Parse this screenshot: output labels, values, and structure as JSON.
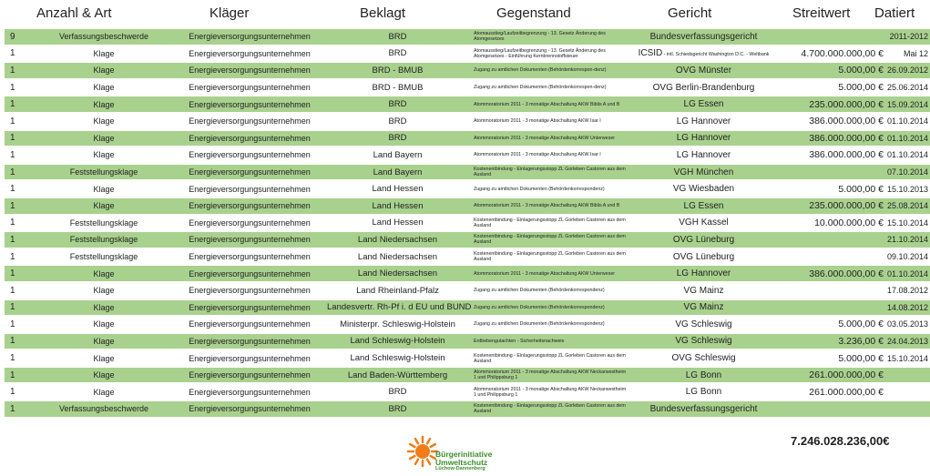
{
  "headers": [
    "Anzahl & Art",
    "Kläger",
    "Beklagt",
    "Gegenstand",
    "Gericht",
    "Streitwert",
    "Datiert"
  ],
  "rows": [
    {
      "n": "9",
      "art": "Verfassungsbeschwerde",
      "klaeger": "Energieversorgungsunternehmen",
      "beklagt": "BRD",
      "gegenstand": "Atomausstieg/Laufzeitbegrenzung - 13. Gesetz Änderung des Atomgesetzes",
      "gericht": "Bundesverfassungsgericht",
      "gericht_note": "",
      "streitwert": "",
      "datiert": "2011-2012",
      "green": true
    },
    {
      "n": "1",
      "art": "Klage",
      "klaeger": "Energieversorgungsunternehmen",
      "beklagt": "BRD",
      "gegenstand": "Atomausstieg/Laufzeitbegrenzung - 13. Gesetz Änderung des Atomgesetzes - Einführung Kernbrennstoffsteuer",
      "gericht": "ICSID",
      "gericht_note": " - intl. Schiedsgericht Washington D.C. - Weltbank",
      "streitwert": "4.700.000.000,00 €",
      "datiert": "Mai 12",
      "green": false
    },
    {
      "n": "1",
      "art": "Klage",
      "klaeger": "Energieversorgungsunternehmen",
      "beklagt": "BRD - BMUB",
      "gegenstand": "Zugang zu amtlichen Dokumenten (Behördenkorrespon-denz)",
      "gericht": "OVG Münster",
      "gericht_note": "",
      "streitwert": "5.000,00 €",
      "datiert": "26.09.2012",
      "green": true
    },
    {
      "n": "1",
      "art": "Klage",
      "klaeger": "Energieversorgungsunternehmen",
      "beklagt": "BRD - BMUB",
      "gegenstand": "Zugang zu amtlichen Dokumenten (Behördenkorrespon-denz)",
      "gericht": "OVG Berlin-Brandenburg",
      "gericht_note": "",
      "streitwert": "5.000,00 €",
      "datiert": "25.06.2014",
      "green": false
    },
    {
      "n": "1",
      "art": "Klage",
      "klaeger": "Energieversorgungsunternehmen",
      "beklagt": "BRD",
      "gegenstand": "Atommoratorium 2011 - 3 monatige Abschaltung AKW Biblis A und B",
      "gericht": "LG Essen",
      "gericht_note": "",
      "streitwert": "235.000.000,00 €",
      "datiert": "15.09.2014",
      "green": true
    },
    {
      "n": "1",
      "art": "Klage",
      "klaeger": "Energieversorgungsunternehmen",
      "beklagt": "BRD",
      "gegenstand": "Atommoratorium 2011 - 3 monatige Abschaltung AKW Isar I",
      "gericht": "LG Hannover",
      "gericht_note": "",
      "streitwert": "386.000.000,00 €",
      "datiert": "01.10.2014",
      "green": false
    },
    {
      "n": "1",
      "art": "Klage",
      "klaeger": "Energieversorgungsunternehmen",
      "beklagt": "BRD",
      "gegenstand": "Atommoratorium 2011 - 3 monatige Abschaltung AKW Unterweser",
      "gericht": "LG Hannover",
      "gericht_note": "",
      "streitwert": "386.000.000,00 €",
      "datiert": "01.10.2014",
      "green": true
    },
    {
      "n": "1",
      "art": "Klage",
      "klaeger": "Energieversorgungsunternehmen",
      "beklagt": "Land Bayern",
      "gegenstand": "Atommoratorium 2011 - 3 monatige Abschaltung AKW Isar I",
      "gericht": "LG Hannover",
      "gericht_note": "",
      "streitwert": "386.000.000,00 €",
      "datiert": "01.10.2014",
      "green": false
    },
    {
      "n": "1",
      "art": "Feststellungsklage",
      "klaeger": "Energieversorgungsunternehmen",
      "beklagt": "Land Bayern",
      "gegenstand": "Kostenentbindung - Einlagerungsstopp ZL Gorleben Castoren aus dem Ausland",
      "gericht": "VGH München",
      "gericht_note": "",
      "streitwert": "",
      "datiert": "07.10.2014",
      "green": true
    },
    {
      "n": "1",
      "art": "Klage",
      "klaeger": "Energieversorgungsunternehmen",
      "beklagt": "Land Hessen",
      "gegenstand": "Zugang zu amtlichen Dokumenten (Behördenkorrespondenz)",
      "gericht": "VG Wiesbaden",
      "gericht_note": "",
      "streitwert": "5.000,00 €",
      "datiert": "15.10.2013",
      "green": false
    },
    {
      "n": "1",
      "art": "Klage",
      "klaeger": "Energieversorgungsunternehmen",
      "beklagt": "Land Hessen",
      "gegenstand": "Atommoratorium 2011 - 3 monatige Abschaltung AKW Biblis A und B",
      "gericht": "LG Essen",
      "gericht_note": "",
      "streitwert": "235.000.000,00 €",
      "datiert": "25.08.2014",
      "green": true
    },
    {
      "n": "1",
      "art": "Feststellungsklage",
      "klaeger": "Energieversorgungsunternehmen",
      "beklagt": "Land Hessen",
      "gegenstand": "Kostenentbindung - Einlagerungsstopp ZL Gorleben Castoren aus dem Ausland",
      "gericht": "VGH Kassel",
      "gericht_note": "",
      "streitwert": "10.000.000,00 €",
      "datiert": "15.10.2014",
      "green": false
    },
    {
      "n": "1",
      "art": "Feststellungsklage",
      "klaeger": "Energieversorgungsunternehmen",
      "beklagt": "Land Niedersachsen",
      "gegenstand": "Kostenentbindung - Einlagerungsstopp ZL Gorleben Castoren aus dem Ausland",
      "gericht": "OVG Lüneburg",
      "gericht_note": "",
      "streitwert": "",
      "datiert": "21.10.2014",
      "green": true
    },
    {
      "n": "1",
      "art": "Feststellungsklage",
      "klaeger": "Energieversorgungsunternehmen",
      "beklagt": "Land Niedersachsen",
      "gegenstand": "Kostenentbindung - Einlagerungsstopp ZL Gorleben Castoren aus dem Ausland",
      "gericht": "OVG Lüneburg",
      "gericht_note": "",
      "streitwert": "",
      "datiert": "09.10.2014",
      "green": false
    },
    {
      "n": "1",
      "art": "Klage",
      "klaeger": "Energieversorgungsunternehmen",
      "beklagt": "Land Niedersachsen",
      "gegenstand": "Atommoratorium 2011 - 3 monatige Abschaltung AKW Unterweser",
      "gericht": "LG Hannover",
      "gericht_note": "",
      "streitwert": "386.000.000,00 €",
      "datiert": "01.10.2014",
      "green": true
    },
    {
      "n": "1",
      "art": "Klage",
      "klaeger": "Energieversorgungsunternehmen",
      "beklagt": "Land Rheinland-Pfalz",
      "gegenstand": "Zugang zu amtlichen Dokumenten (Behördenkorrespondenz)",
      "gericht": "VG Mainz",
      "gericht_note": "",
      "streitwert": "",
      "datiert": "17.08.2012",
      "green": false
    },
    {
      "n": "1",
      "art": "Klage",
      "klaeger": "Energieversorgungsunternehmen",
      "beklagt": "Landesvertr. Rh-Pf i. d EU und BUND",
      "gegenstand": "Zugang zu amtlichen Dokumenten (Behördenkorrespondenz)",
      "gericht": "VG Mainz",
      "gericht_note": "",
      "streitwert": "",
      "datiert": "14.08.2012",
      "green": true
    },
    {
      "n": "1",
      "art": "Klage",
      "klaeger": "Energieversorgungsunternehmen",
      "beklagt": "Ministerpr. Schleswig-Holstein",
      "gegenstand": "Zugang zu amtlichen Dokumenten (Behördenkorrespondenz)",
      "gericht": "VG Schleswig",
      "gericht_note": "",
      "streitwert": "5.000,00 €",
      "datiert": "03.05.2013",
      "green": false
    },
    {
      "n": "1",
      "art": "Klage",
      "klaeger": "Energieversorgungsunternehmen",
      "beklagt": "Land Schleswig-Holstein",
      "gegenstand": "Erdbebengutachten - Sicherheitsnachweis",
      "gericht": "VG Schleswig",
      "gericht_note": "",
      "streitwert": "3.236,00 €",
      "datiert": "24.04.2013",
      "green": true
    },
    {
      "n": "1",
      "art": "Klage",
      "klaeger": "Energieversorgungsunternehmen",
      "beklagt": "Land Schleswig-Holstein",
      "gegenstand": "Kostenentbindung - Einlagerungsstopp ZL Gorleben Castoren aus dem Ausland",
      "gericht": "OVG Schleswig",
      "gericht_note": "",
      "streitwert": "5.000,00 €",
      "datiert": "15.10.2014",
      "green": false
    },
    {
      "n": "1",
      "art": "Klage",
      "klaeger": "Energieversorgungsunternehmen",
      "beklagt": "Land Baden-Württemberg",
      "gegenstand": "Atommoratorium 2011 - 3 monatige Abschaltung AKW Neckarwestheim 1 und Philippsburg 1",
      "gericht": "LG Bonn",
      "gericht_note": "",
      "streitwert": "261.000.000,00 €",
      "datiert": "",
      "green": true
    },
    {
      "n": "1",
      "art": "Klage",
      "klaeger": "Energieversorgungsunternehmen",
      "beklagt": "BRD",
      "gegenstand": "Atommoratorium 2011 - 3 monatige Abschaltung AKW Neckarwestheim 1 und Philippsburg 1",
      "gericht": "LG Bonn",
      "gericht_note": "",
      "streitwert": "261.000.000,00 €",
      "datiert": "",
      "green": false
    },
    {
      "n": "1",
      "art": "Verfassungsbeschwerde",
      "klaeger": "Energieversorgungsunternehmen",
      "beklagt": "BRD",
      "gegenstand": "Kostenentbindung - Einlagerungsstopp ZL Gorleben Castoren aus dem Ausland",
      "gericht": "Bundesverfassungsgericht",
      "gericht_note": "",
      "streitwert": "",
      "datiert": "",
      "green": true
    }
  ],
  "total": "7.246.028.236,00€",
  "logo": {
    "line1": "Bürgerinitiative",
    "line2": "Umweltschutz",
    "line3": "Lüchow-Dannenberg",
    "sun_color": "#f07d1a",
    "text_color": "#3a8f2a"
  },
  "colors": {
    "green_row": "#a9d18e",
    "white_row": "#ffffff"
  }
}
